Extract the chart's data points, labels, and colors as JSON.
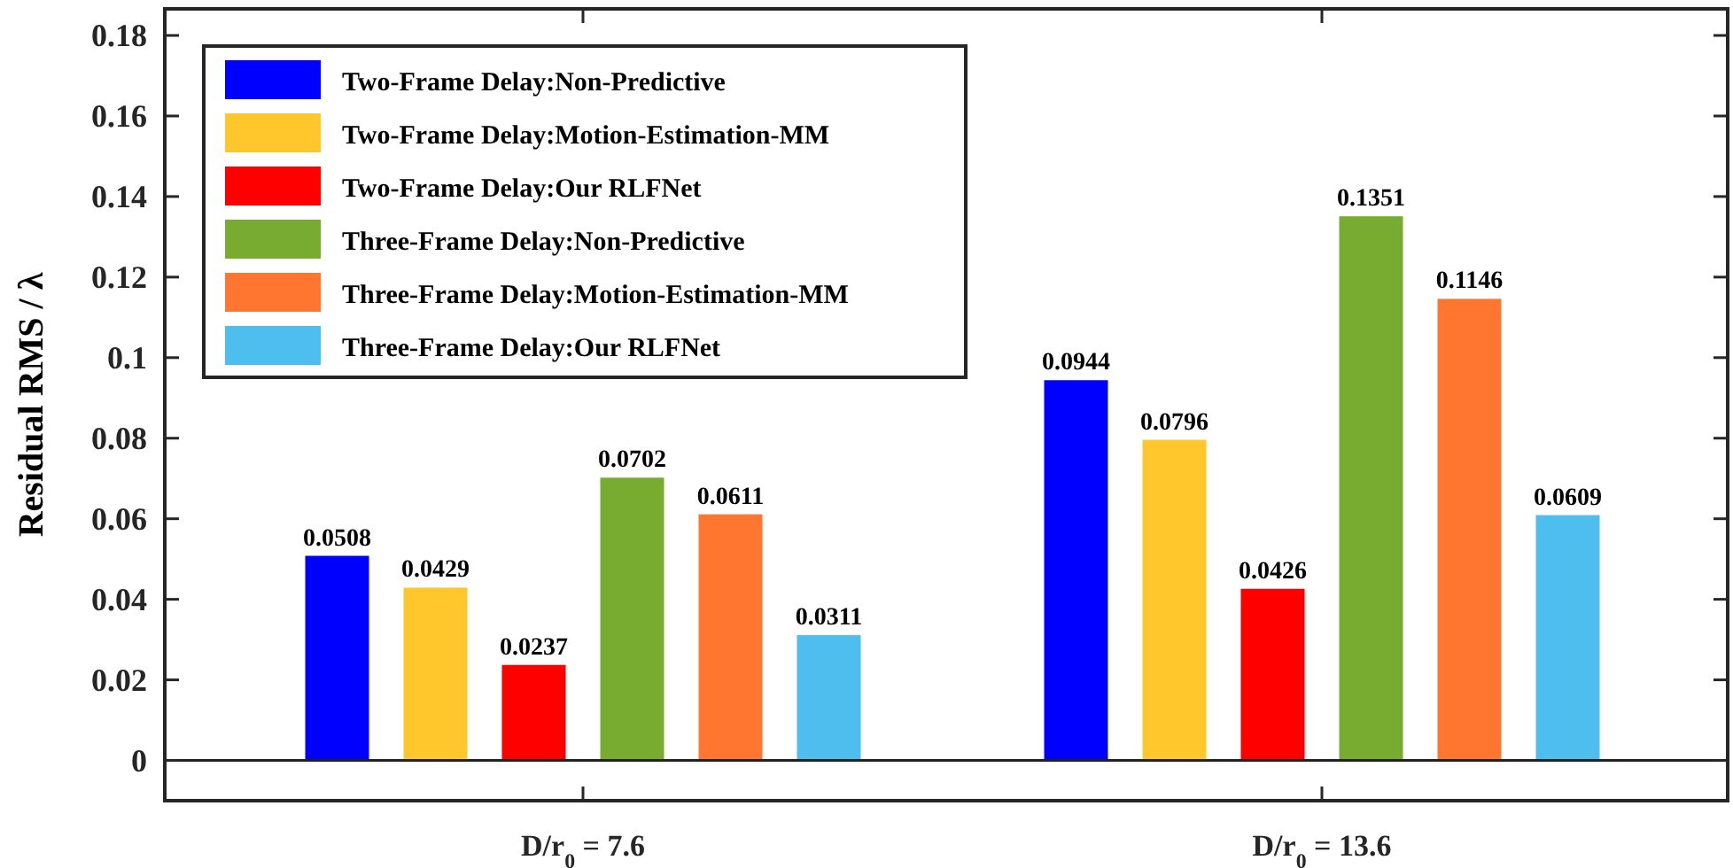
{
  "chart_data": {
    "type": "bar",
    "ylabel": "Residual RMS / λ",
    "categories": [
      "D/r$_{0}$ = 7.6",
      "D/r$_{0}$ = 13.6"
    ],
    "series": [
      {
        "name": "Two-Frame Delay:Non-Predictive",
        "color": "#0000ff",
        "values": [
          0.0508,
          0.0944
        ]
      },
      {
        "name": "Two-Frame Delay:Motion-Estimation-MM",
        "color": "#ffc72c",
        "values": [
          0.0429,
          0.0796
        ]
      },
      {
        "name": "Two-Frame Delay:Our RLFNet",
        "color": "#ff0000",
        "values": [
          0.0237,
          0.0426
        ]
      },
      {
        "name": "Three-Frame Delay:Non-Predictive",
        "color": "#77ac30",
        "values": [
          0.0702,
          0.1351
        ]
      },
      {
        "name": "Three-Frame Delay:Motion-Estimation-MM",
        "color": "#ff7630",
        "values": [
          0.0611,
          0.1146
        ]
      },
      {
        "name": "Three-Frame Delay:Our RLFNet",
        "color": "#4dbeee",
        "values": [
          0.0311,
          0.0609
        ]
      }
    ],
    "ylim": [
      -0.01,
      0.1866
    ],
    "yticks": [
      0,
      0.02,
      0.04,
      0.06,
      0.08,
      0.1,
      0.12,
      0.14,
      0.16,
      0.18
    ],
    "ref_lines": [
      {
        "axis": "y",
        "value": 0
      }
    ],
    "data_labels": true,
    "legend": "top left",
    "grid": false
  }
}
